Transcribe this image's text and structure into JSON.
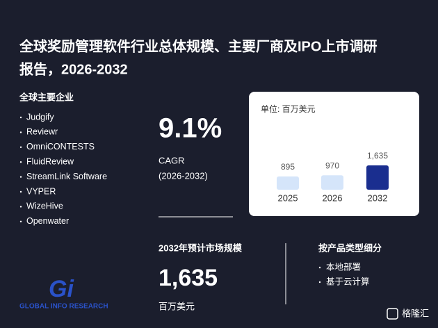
{
  "header": {
    "title_line1": "全球奖励管理软件行业总体规模、主要厂商及IPO上市调研",
    "title_line2": "报告，2026-2032"
  },
  "companies": {
    "heading": "全球主要企业",
    "items": [
      "Judgify",
      "Reviewr",
      "OmniCONTESTS",
      "FluidReview",
      "StreamLink Software",
      "VYPER",
      "WizeHive",
      "Openwater"
    ]
  },
  "cagr": {
    "value": "9.1%",
    "label": "CAGR",
    "period": "(2026-2032)"
  },
  "market": {
    "heading": "2032年预计市场规模",
    "value": "1,635",
    "unit": "百万美元"
  },
  "segments": {
    "heading": "按产品类型细分",
    "items": [
      "本地部署",
      "基于云计算"
    ]
  },
  "logo": {
    "mark": "Gi",
    "text": "GLOBAL INFO RESEARCH"
  },
  "footer": {
    "brand": "格隆汇"
  },
  "chart_data": {
    "type": "bar",
    "subtitle": "单位: 百万美元",
    "categories": [
      "2025",
      "2026",
      "2032"
    ],
    "values": [
      895,
      970,
      1635
    ],
    "value_labels": [
      "895",
      "970",
      "1,635"
    ],
    "colors": [
      "#d5e5fa",
      "#d5e5fa",
      "#1a2e8f"
    ]
  }
}
